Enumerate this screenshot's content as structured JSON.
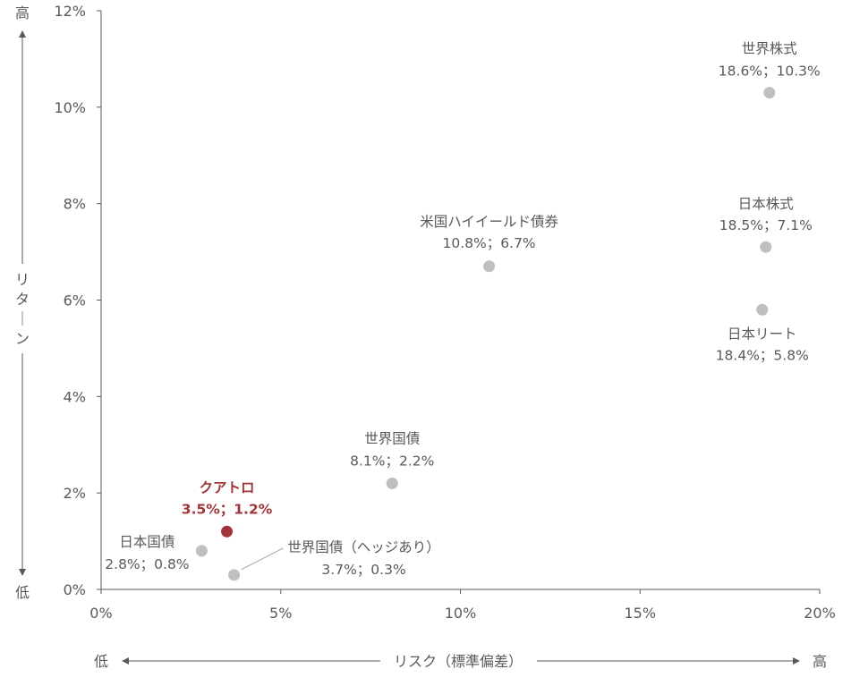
{
  "chart_data": {
    "type": "scatter",
    "xlabel": "リスク（標準偏差）",
    "ylabel": "リターン",
    "x_low_label": "低",
    "x_high_label": "高",
    "y_low_label": "低",
    "y_high_label": "高",
    "xlim": [
      0,
      20
    ],
    "ylim": [
      0,
      12
    ],
    "xticks": [
      0,
      5,
      10,
      15,
      20
    ],
    "yticks": [
      0,
      2,
      4,
      6,
      8,
      10,
      12
    ],
    "xtick_labels": [
      "0%",
      "5%",
      "10%",
      "15%",
      "20%"
    ],
    "ytick_labels": [
      "0%",
      "2%",
      "4%",
      "6%",
      "8%",
      "10%",
      "12%"
    ],
    "grid": false,
    "points": [
      {
        "name": "世界株式",
        "x": 18.6,
        "y": 10.3,
        "value_label": "18.6%；10.3%",
        "highlight": false
      },
      {
        "name": "日本株式",
        "x": 18.5,
        "y": 7.1,
        "value_label": "18.5%；7.1%",
        "highlight": false
      },
      {
        "name": "日本リート",
        "x": 18.4,
        "y": 5.8,
        "value_label": "18.4%；5.8%",
        "highlight": false
      },
      {
        "name": "米国ハイイールド債券",
        "x": 10.8,
        "y": 6.7,
        "value_label": "10.8%；6.7%",
        "highlight": false
      },
      {
        "name": "世界国債",
        "x": 8.1,
        "y": 2.2,
        "value_label": "8.1%；2.2%",
        "highlight": false
      },
      {
        "name": "クアトロ",
        "x": 3.5,
        "y": 1.2,
        "value_label": "3.5%；1.2%",
        "highlight": true
      },
      {
        "name": "日本国債",
        "x": 2.8,
        "y": 0.8,
        "value_label": "2.8%；0.8%",
        "highlight": false
      },
      {
        "name": "世界国債（ヘッジあり）",
        "x": 3.7,
        "y": 0.3,
        "value_label": "3.7%；0.3%",
        "highlight": false
      }
    ],
    "colors": {
      "point": "#bfbfbf",
      "highlight_point": "#a0353a",
      "highlight_text": "#a0353a",
      "axis": "#595959",
      "text": "#595959"
    }
  }
}
